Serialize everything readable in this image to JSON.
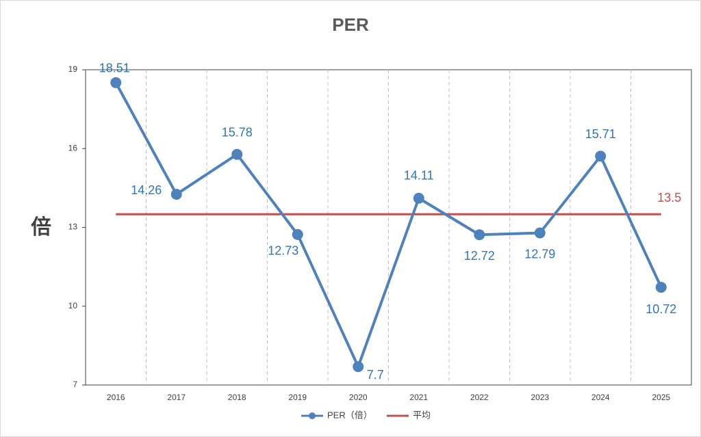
{
  "chart_data": {
    "type": "line",
    "title": "PER",
    "y_label": "倍",
    "categories": [
      "2016",
      "2017",
      "2018",
      "2019",
      "2020",
      "2021",
      "2022",
      "2023",
      "2024",
      "2025"
    ],
    "series": [
      {
        "name": "PER（倍）",
        "color": "#4f81bd",
        "label_color": "#2e75b6",
        "values": [
          18.51,
          14.26,
          15.78,
          12.73,
          7.7,
          14.11,
          12.72,
          12.79,
          15.71,
          10.72
        ]
      }
    ],
    "average": {
      "name": "平均",
      "color": "#c0504d",
      "value": 13.5
    },
    "ylim": [
      7,
      19
    ],
    "yticks": [
      7,
      10,
      13,
      16,
      19
    ],
    "grid": "vertical-dashed",
    "legend": "bottom"
  }
}
